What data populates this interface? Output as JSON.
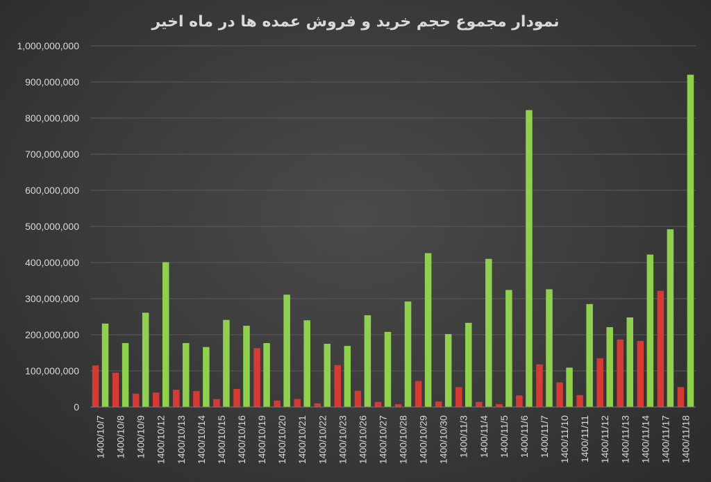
{
  "chart_data": {
    "type": "bar",
    "title": "نمودار مجموع حجم خرید و فروش عمده ها در ماه اخیر",
    "xlabel": "",
    "ylabel": "",
    "ylim": [
      0,
      1000000000
    ],
    "yticks": [
      "0",
      "100,000,000",
      "200,000,000",
      "300,000,000",
      "400,000,000",
      "500,000,000",
      "600,000,000",
      "700,000,000",
      "800,000,000",
      "900,000,000",
      "1,000,000,000"
    ],
    "grid": true,
    "legend": "none",
    "categories": [
      "1400/10/7",
      "1400/10/8",
      "1400/10/9",
      "1400/10/12",
      "1400/10/13",
      "1400/10/14",
      "1400/10/15",
      "1400/10/16",
      "1400/10/19",
      "1400/10/20",
      "1400/10/21",
      "1400/10/22",
      "1400/10/23",
      "1400/10/26",
      "1400/10/27",
      "1400/10/28",
      "1400/10/29",
      "1400/10/30",
      "1400/11/3",
      "1400/11/4",
      "1400/11/5",
      "1400/11/6",
      "1400/11/7",
      "1400/11/10",
      "1400/11/11",
      "1400/11/12",
      "1400/11/13",
      "1400/11/14",
      "1400/11/17",
      "1400/11/18"
    ],
    "series": [
      {
        "color": "#d63a35",
        "values": [
          115000000,
          95000000,
          37000000,
          40000000,
          48000000,
          44000000,
          22000000,
          50000000,
          163000000,
          18000000,
          22000000,
          10000000,
          116000000,
          45000000,
          14000000,
          8000000,
          72000000,
          15000000,
          55000000,
          14000000,
          8000000,
          32000000,
          118000000,
          68000000,
          33000000,
          135000000,
          187000000,
          183000000,
          322000000,
          55000000
        ]
      },
      {
        "color": "#8fd14f",
        "values": [
          231000000,
          177000000,
          261000000,
          401000000,
          177000000,
          166000000,
          241000000,
          225000000,
          177000000,
          311000000,
          240000000,
          175000000,
          169000000,
          254000000,
          208000000,
          292000000,
          426000000,
          202000000,
          233000000,
          410000000,
          324000000,
          822000000,
          326000000,
          109000000,
          285000000,
          221000000,
          248000000,
          422000000,
          492000000,
          920000000
        ]
      }
    ]
  }
}
